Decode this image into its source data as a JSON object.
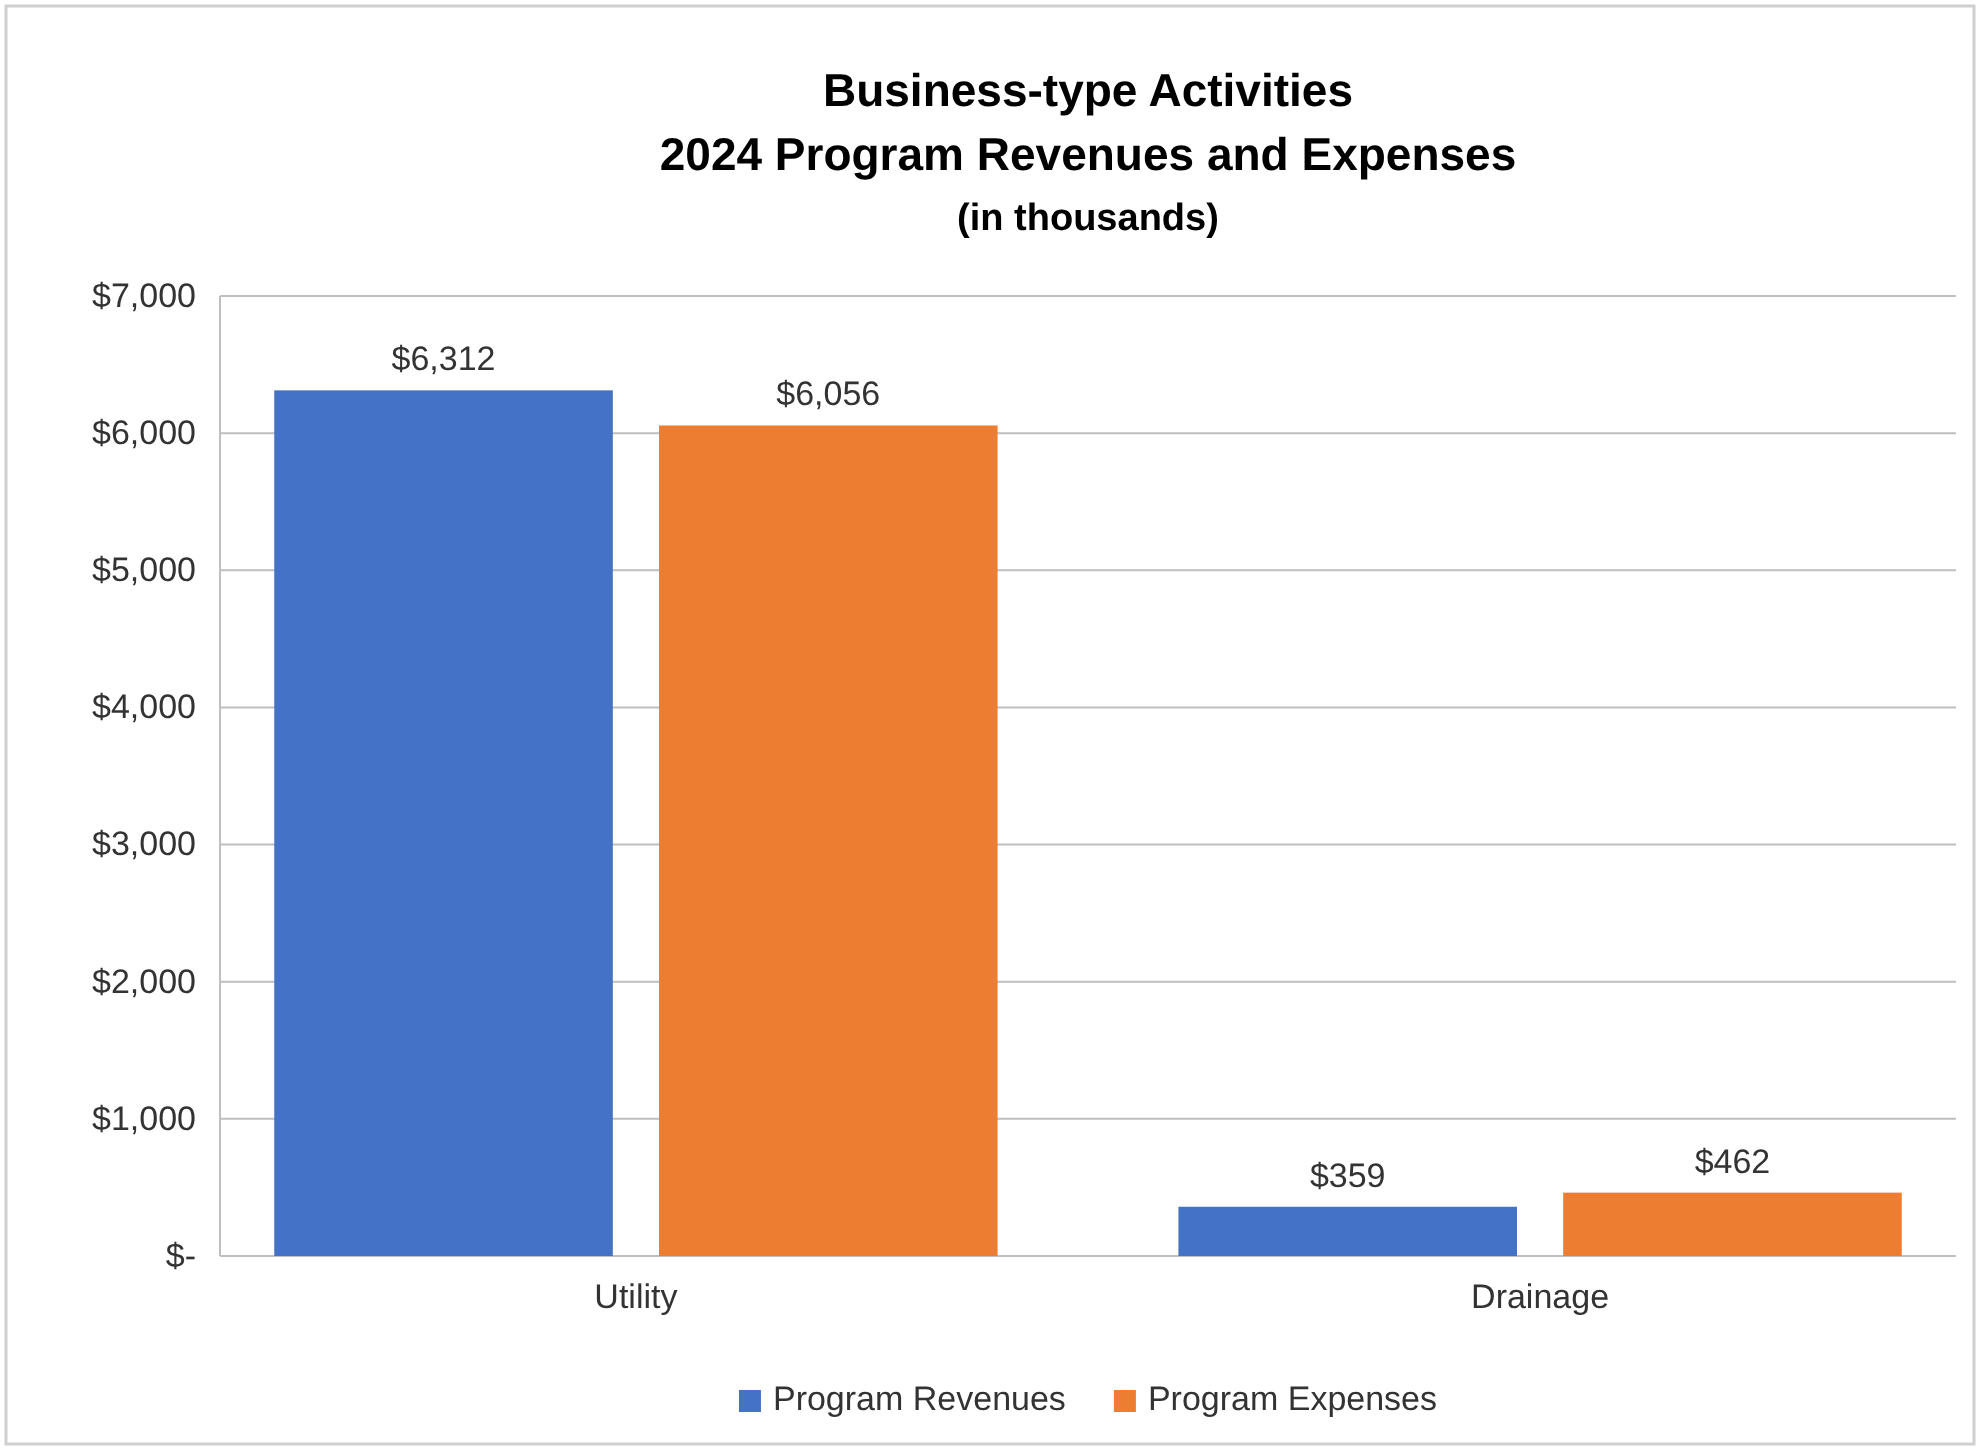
{
  "chart_data": {
    "type": "bar",
    "title": "Business-type Activities\n2024 Program Revenues and Expenses",
    "subtitle": "(in thousands)",
    "categories": [
      "Utility",
      "Drainage"
    ],
    "series": [
      {
        "name": "Program Revenues",
        "color": "#4472c4",
        "values": [
          6312,
          359
        ],
        "value_labels": [
          "$6,312",
          "$359"
        ]
      },
      {
        "name": "Program Expenses",
        "color": "#ed7d31",
        "values": [
          6056,
          462
        ],
        "value_labels": [
          "$6,056",
          "$462"
        ]
      }
    ],
    "ylim": [
      0,
      7000
    ],
    "yticks": [
      {
        "value": 0,
        "label": "$-"
      },
      {
        "value": 1000,
        "label": "$1,000"
      },
      {
        "value": 2000,
        "label": "$2,000"
      },
      {
        "value": 3000,
        "label": "$3,000"
      },
      {
        "value": 4000,
        "label": "$4,000"
      },
      {
        "value": 5000,
        "label": "$5,000"
      },
      {
        "value": 6000,
        "label": "$6,000"
      },
      {
        "value": 7000,
        "label": "$7,000"
      }
    ],
    "grid": "y",
    "legend": "bottom"
  }
}
